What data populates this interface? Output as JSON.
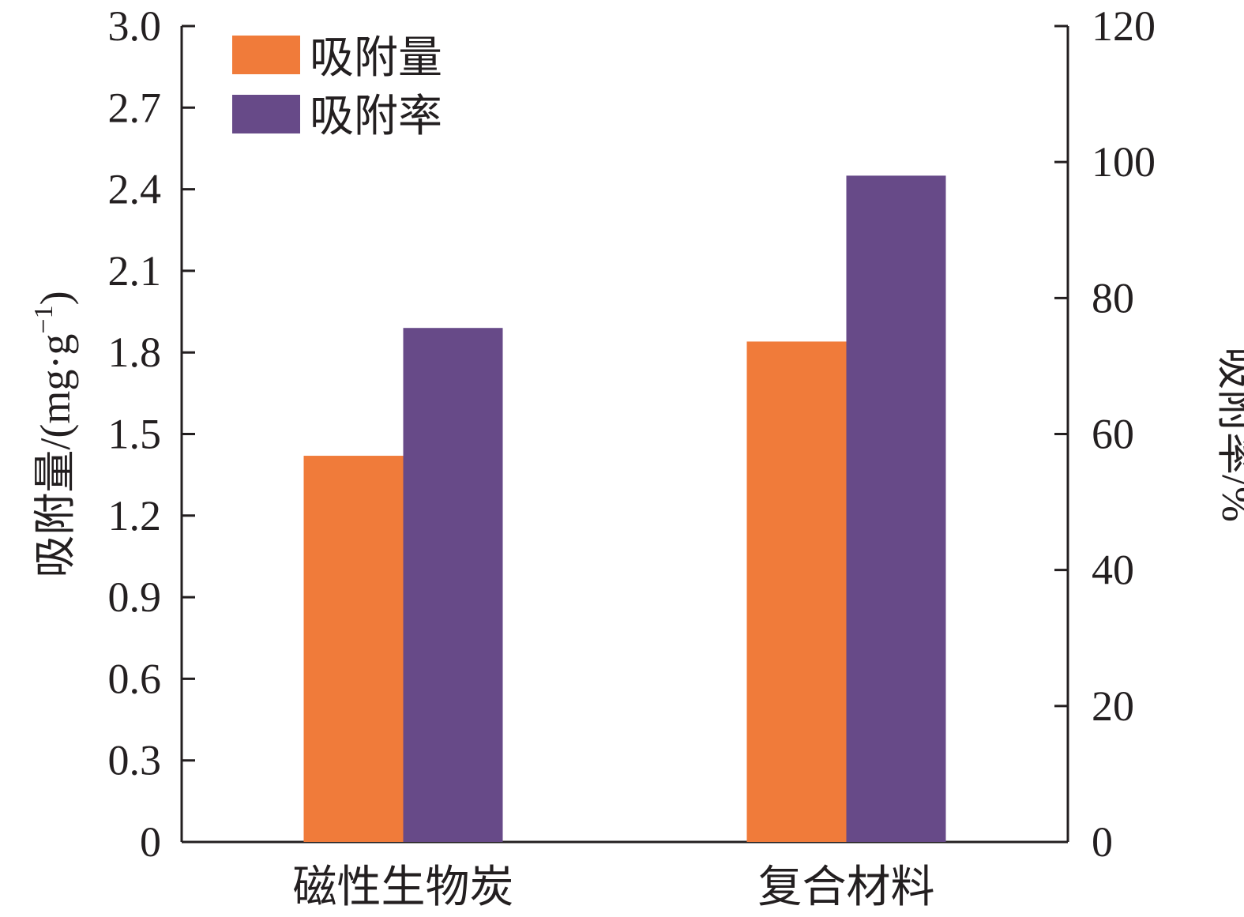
{
  "chart_data": {
    "type": "bar",
    "categories": [
      "磁性生物炭",
      "复合材料"
    ],
    "series": [
      {
        "name": "吸附量",
        "axis": "left",
        "color": "#f07b3a",
        "values": [
          1.42,
          1.84
        ]
      },
      {
        "name": "吸附率",
        "axis": "right",
        "color": "#674a88",
        "values": [
          75.6,
          98.0
        ]
      }
    ],
    "left_axis": {
      "label_prefix": "吸附量/(mg·g",
      "label_sup": "−1",
      "label_suffix": ")",
      "ylim": [
        0,
        3.0
      ],
      "ticks": [
        "0",
        "0.3",
        "0.6",
        "0.9",
        "1.2",
        "1.5",
        "1.8",
        "2.1",
        "2.4",
        "2.7",
        "3.0"
      ]
    },
    "right_axis": {
      "label": "吸附率/%",
      "ylim": [
        0,
        120
      ],
      "ticks": [
        "0",
        "20",
        "40",
        "60",
        "80",
        "100",
        "120"
      ]
    },
    "legend": {
      "placement": "top-left",
      "entries": [
        "吸附量",
        "吸附率"
      ]
    },
    "grid": false
  }
}
